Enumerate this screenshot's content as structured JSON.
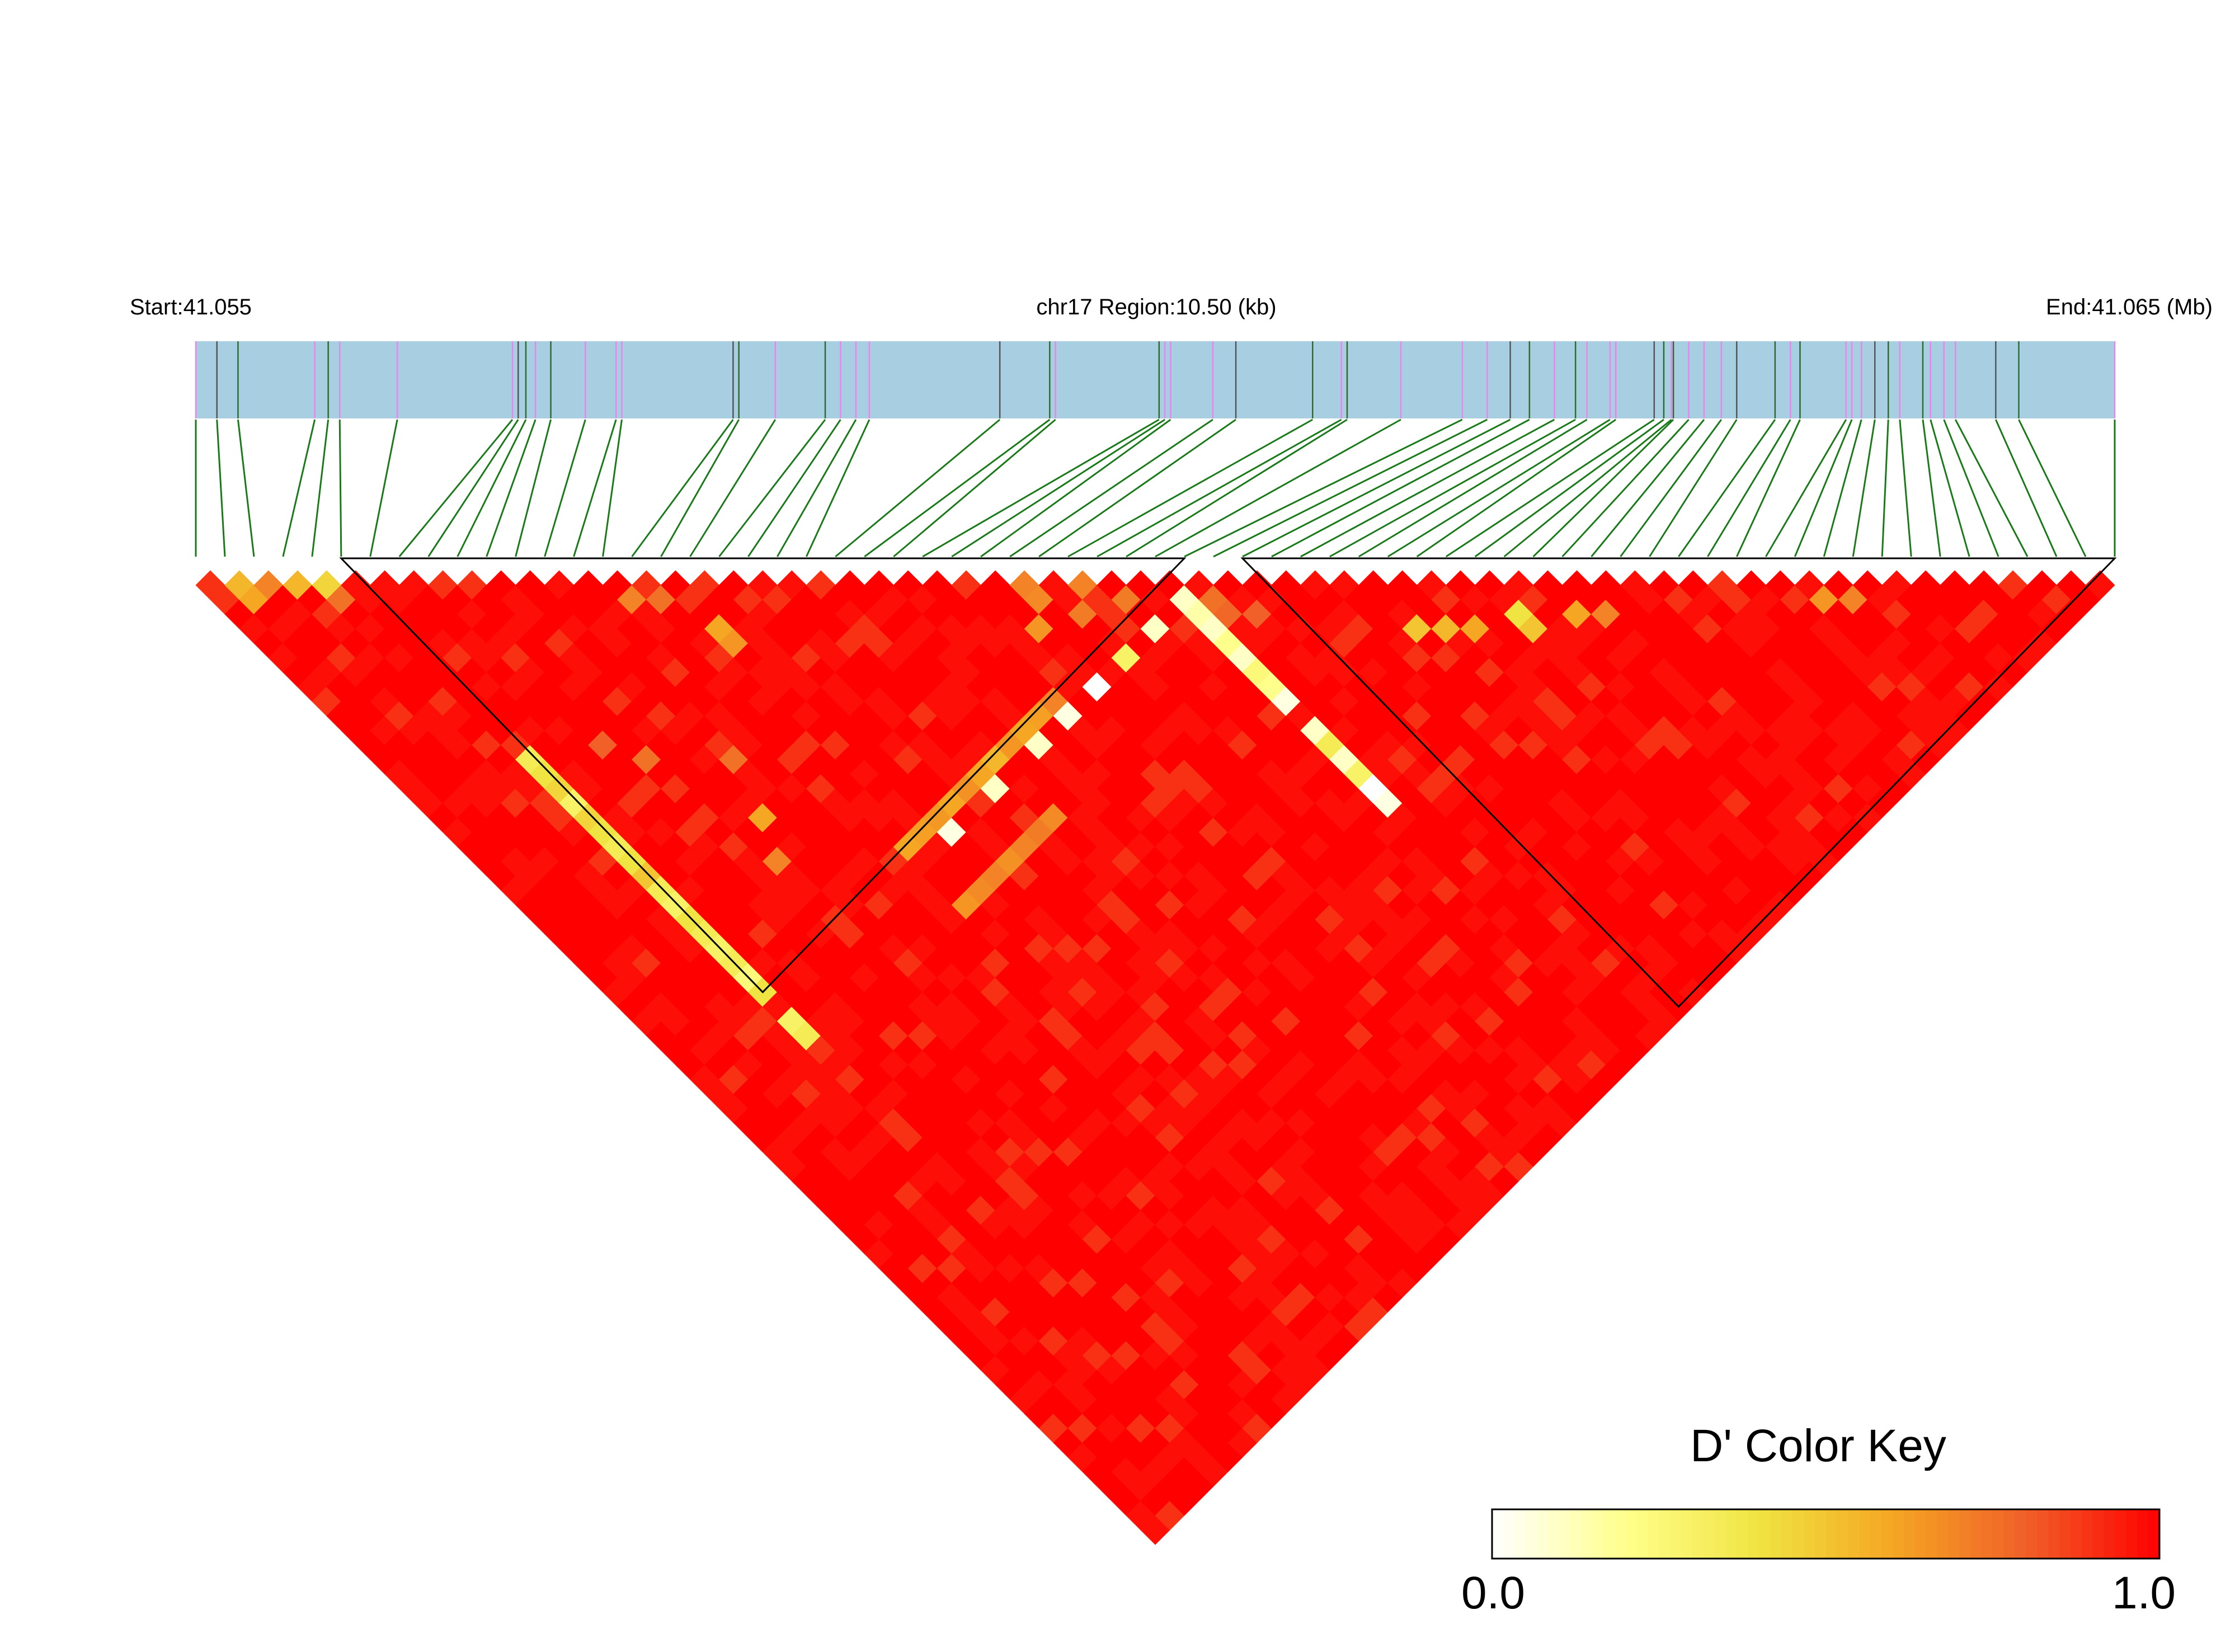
{
  "chart_data": {
    "type": "heatmap",
    "title": "",
    "chromosome_label": "chr17 Region:10.50 (kb)",
    "start_label": "Start:41.055",
    "end_label": "End:41.065 (Mb)",
    "region_start_mb": 41.055,
    "region_end_mb": 41.065,
    "region_kb": 10.5,
    "snp_count": 67,
    "snp_relative_positions": [
      0.0,
      0.011,
      0.022,
      0.062,
      0.069,
      0.075,
      0.105,
      0.165,
      0.168,
      0.172,
      0.177,
      0.185,
      0.203,
      0.219,
      0.222,
      0.28,
      0.283,
      0.302,
      0.328,
      0.336,
      0.344,
      0.351,
      0.419,
      0.445,
      0.448,
      0.502,
      0.505,
      0.508,
      0.53,
      0.542,
      0.582,
      0.597,
      0.6,
      0.628,
      0.66,
      0.673,
      0.685,
      0.695,
      0.708,
      0.719,
      0.725,
      0.737,
      0.74,
      0.76,
      0.765,
      0.769,
      0.77,
      0.778,
      0.786,
      0.795,
      0.803,
      0.823,
      0.831,
      0.836,
      0.86,
      0.863,
      0.868,
      0.875,
      0.882,
      0.888,
      0.9,
      0.904,
      0.911,
      0.917,
      0.938,
      0.95,
      1.0
    ],
    "snp_marker_colors": [
      "#ee82ee",
      "#555555",
      "#2f6b2f",
      "#ee82ee",
      "#2f6b2f",
      "#ee82ee",
      "#ee82ee"
    ],
    "base_dprime": 0.97,
    "low_dprime_pairs": [
      {
        "i": 1,
        "j": 2,
        "d": 0.55
      },
      {
        "i": 1,
        "j": 3,
        "d": 0.6
      },
      {
        "i": 2,
        "j": 3,
        "d": 0.7
      },
      {
        "i": 3,
        "j": 4,
        "d": 0.55
      },
      {
        "i": 4,
        "j": 5,
        "d": 0.45
      },
      {
        "i": 4,
        "j": 6,
        "d": 0.75
      },
      {
        "i": 5,
        "j": 18,
        "d": 0.35
      },
      {
        "i": 5,
        "j": 19,
        "d": 0.4
      },
      {
        "i": 5,
        "j": 20,
        "d": 0.45
      },
      {
        "i": 5,
        "j": 21,
        "d": 0.3
      },
      {
        "i": 5,
        "j": 22,
        "d": 0.45
      },
      {
        "i": 5,
        "j": 23,
        "d": 0.4
      },
      {
        "i": 5,
        "j": 24,
        "d": 0.35
      },
      {
        "i": 5,
        "j": 25,
        "d": 0.4
      },
      {
        "i": 5,
        "j": 26,
        "d": 0.5
      },
      {
        "i": 5,
        "j": 27,
        "d": 0.35
      },
      {
        "i": 5,
        "j": 28,
        "d": 0.3
      },
      {
        "i": 5,
        "j": 29,
        "d": 0.4
      },
      {
        "i": 5,
        "j": 30,
        "d": 0.35
      },
      {
        "i": 5,
        "j": 31,
        "d": 0.3
      },
      {
        "i": 5,
        "j": 32,
        "d": 0.35
      },
      {
        "i": 5,
        "j": 33,
        "d": 0.25
      },
      {
        "i": 5,
        "j": 34,
        "d": 0.4
      },
      {
        "i": 5,
        "j": 36,
        "d": 0.3
      },
      {
        "i": 5,
        "j": 37,
        "d": 0.35
      },
      {
        "i": 28,
        "j": 29,
        "d": 0.7
      },
      {
        "i": 28,
        "j": 30,
        "d": 0.68
      },
      {
        "i": 27,
        "j": 31,
        "d": 0.65
      },
      {
        "i": 30,
        "j": 31,
        "d": 0.7
      },
      {
        "i": 29,
        "j": 32,
        "d": 0.72
      },
      {
        "i": 31,
        "j": 33,
        "d": 0.72
      },
      {
        "i": 33,
        "j": 35,
        "d": 0.1
      },
      {
        "i": 33,
        "j": 36,
        "d": 0.15
      },
      {
        "i": 33,
        "j": 37,
        "d": 0.1
      },
      {
        "i": 33,
        "j": 38,
        "d": 0.2
      },
      {
        "i": 33,
        "j": 39,
        "d": 0.1
      },
      {
        "i": 33,
        "j": 40,
        "d": 0.25
      },
      {
        "i": 33,
        "j": 41,
        "d": 0.2
      },
      {
        "i": 33,
        "j": 42,
        "d": 0.05
      },
      {
        "i": 33,
        "j": 44,
        "d": 0.1
      },
      {
        "i": 33,
        "j": 45,
        "d": 0.35
      },
      {
        "i": 33,
        "j": 46,
        "d": 0.1
      },
      {
        "i": 33,
        "j": 47,
        "d": 0.3
      },
      {
        "i": 33,
        "j": 48,
        "d": 0.0
      },
      {
        "i": 33,
        "j": 49,
        "d": 0.05
      },
      {
        "i": 34,
        "j": 36,
        "d": 0.75
      },
      {
        "i": 34,
        "j": 37,
        "d": 0.78
      },
      {
        "i": 35,
        "j": 38,
        "d": 0.8
      },
      {
        "i": 40,
        "j": 44,
        "d": 0.5
      },
      {
        "i": 41,
        "j": 45,
        "d": 0.55
      },
      {
        "i": 42,
        "j": 46,
        "d": 0.6
      },
      {
        "i": 44,
        "j": 47,
        "d": 0.4
      },
      {
        "i": 44,
        "j": 48,
        "d": 0.5
      },
      {
        "i": 46,
        "j": 49,
        "d": 0.6
      },
      {
        "i": 47,
        "j": 50,
        "d": 0.7
      },
      {
        "i": 15,
        "j": 34,
        "d": 0.6
      },
      {
        "i": 16,
        "j": 34,
        "d": 0.62
      },
      {
        "i": 17,
        "j": 34,
        "d": 0.64
      },
      {
        "i": 18,
        "j": 34,
        "d": 0.6
      },
      {
        "i": 19,
        "j": 34,
        "d": 0.66
      },
      {
        "i": 20,
        "j": 34,
        "d": 0.6
      },
      {
        "i": 21,
        "j": 34,
        "d": 0.55
      },
      {
        "i": 22,
        "j": 34,
        "d": 0.65
      },
      {
        "i": 23,
        "j": 34,
        "d": 0.6
      },
      {
        "i": 24,
        "j": 34,
        "d": 0.62
      },
      {
        "i": 25,
        "j": 34,
        "d": 0.7
      },
      {
        "i": 17,
        "j": 35,
        "d": 0.05
      },
      {
        "i": 20,
        "j": 35,
        "d": 0.1
      },
      {
        "i": 23,
        "j": 35,
        "d": 0.1
      },
      {
        "i": 25,
        "j": 35,
        "d": 0.05
      },
      {
        "i": 27,
        "j": 35,
        "d": 0.0
      },
      {
        "i": 29,
        "j": 35,
        "d": 0.3
      },
      {
        "i": 31,
        "j": 35,
        "d": 0.1
      },
      {
        "i": 15,
        "j": 38,
        "d": 0.65
      },
      {
        "i": 16,
        "j": 38,
        "d": 0.68
      },
      {
        "i": 17,
        "j": 38,
        "d": 0.7
      },
      {
        "i": 18,
        "j": 38,
        "d": 0.66
      },
      {
        "i": 19,
        "j": 38,
        "d": 0.7
      },
      {
        "i": 20,
        "j": 38,
        "d": 0.72
      },
      {
        "i": 21,
        "j": 38,
        "d": 0.68
      },
      {
        "i": 16,
        "j": 20,
        "d": 0.6
      },
      {
        "i": 16,
        "j": 21,
        "d": 0.65
      },
      {
        "i": 14,
        "j": 16,
        "d": 0.7
      },
      {
        "i": 15,
        "j": 17,
        "d": 0.75
      },
      {
        "i": 55,
        "j": 57,
        "d": 0.65
      },
      {
        "i": 56,
        "j": 58,
        "d": 0.7
      },
      {
        "i": 12,
        "j": 25,
        "d": 0.75
      },
      {
        "i": 11,
        "j": 28,
        "d": 0.6
      },
      {
        "i": 10,
        "j": 30,
        "d": 0.7
      },
      {
        "i": 8,
        "j": 20,
        "d": 0.8
      },
      {
        "i": 9,
        "j": 22,
        "d": 0.75
      }
    ],
    "haplotype_blocks": [
      [
        5,
        34
      ],
      [
        36,
        66
      ]
    ],
    "color_scale": {
      "title": "D' Color Key",
      "min_label": "0.0",
      "max_label": "1.0",
      "min": 0.0,
      "max": 1.0,
      "stops": [
        "#ffffff",
        "#ffff8c",
        "#f0e442",
        "#f5a623",
        "#f06028",
        "#ff0000"
      ]
    },
    "colors": {
      "band_fill": "#a8cfe1",
      "connector": "#1a7a1a",
      "block_outline": "#000000"
    }
  }
}
